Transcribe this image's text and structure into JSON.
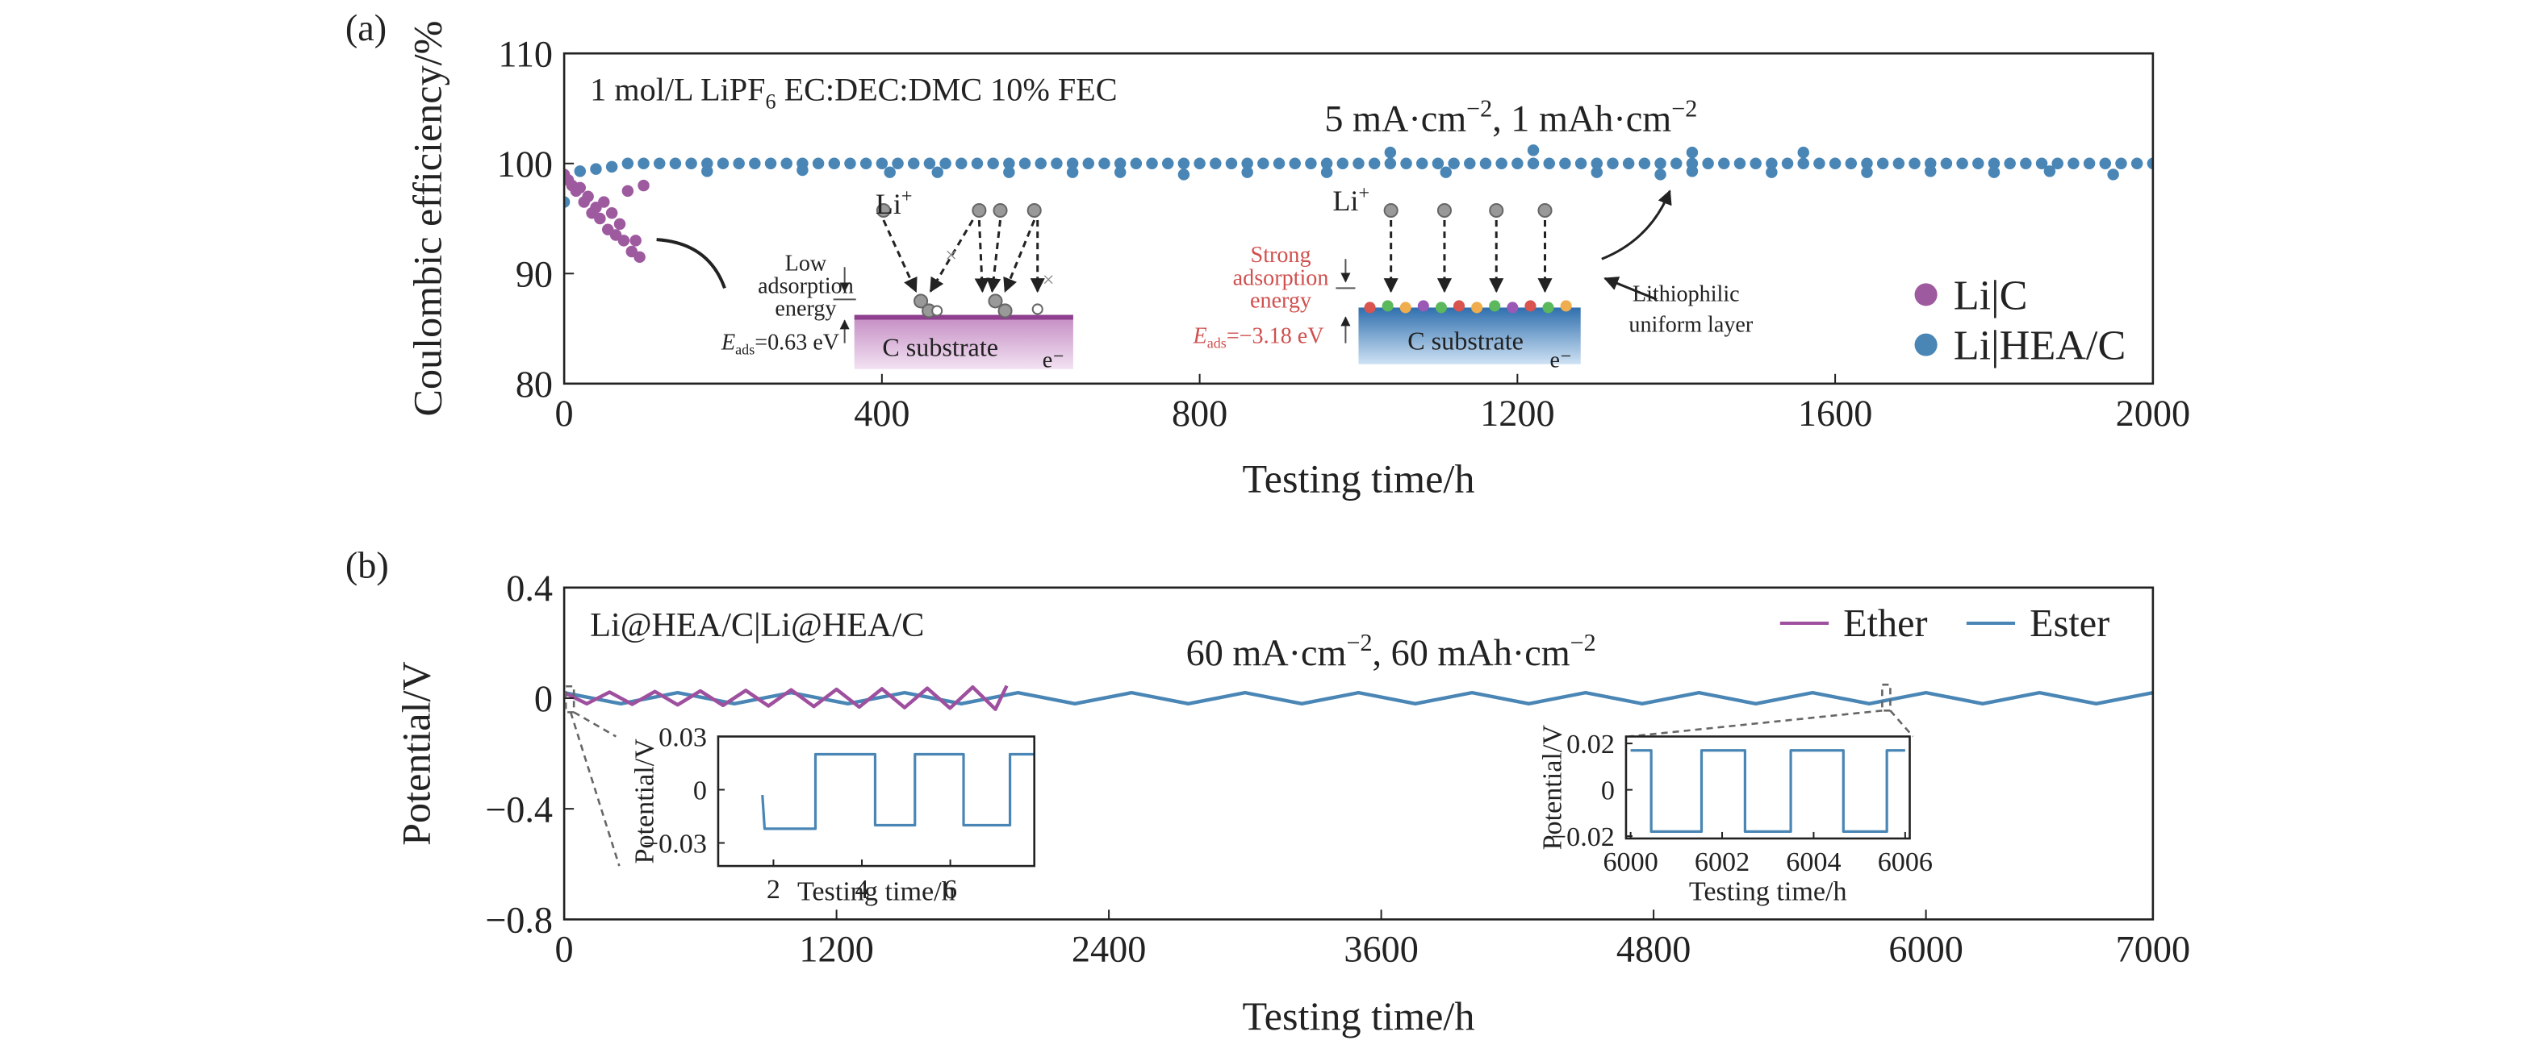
{
  "chart_data": [
    {
      "type": "scatter",
      "panel_label": "(a)",
      "xlabel": "Testing time/h",
      "ylabel": "Coulombic efficiency/%",
      "xlim": [
        0,
        2000
      ],
      "ylim": [
        80,
        110
      ],
      "xticks": [
        0,
        400,
        800,
        1200,
        1600,
        2000
      ],
      "yticks": [
        80,
        90,
        100,
        110
      ],
      "legend": "lower right",
      "series": [
        {
          "name": "Li|C",
          "color": "#9e5a9e",
          "x": [
            0,
            5,
            10,
            15,
            20,
            25,
            30,
            35,
            40,
            45,
            50,
            55,
            60,
            65,
            70,
            75,
            80,
            85,
            90,
            95,
            100
          ],
          "values": [
            99,
            98.5,
            98,
            97.5,
            97.8,
            96.5,
            97,
            95.5,
            96,
            95,
            96.5,
            94,
            95.5,
            93.5,
            94.5,
            93,
            97.5,
            92,
            93,
            91.5,
            98
          ]
        },
        {
          "name": "Li|HEA/C",
          "color": "#4a86b5",
          "x": [
            0,
            20,
            40,
            60,
            80,
            100,
            120,
            140,
            160,
            180,
            200,
            220,
            240,
            260,
            280,
            300,
            320,
            340,
            360,
            380,
            400,
            420,
            440,
            460,
            480,
            500,
            520,
            540,
            560,
            580,
            600,
            620,
            640,
            660,
            680,
            700,
            720,
            740,
            760,
            780,
            800,
            820,
            840,
            860,
            880,
            900,
            920,
            940,
            960,
            980,
            1000,
            1020,
            1040,
            1060,
            1080,
            1100,
            1120,
            1140,
            1160,
            1180,
            1200,
            1220,
            1240,
            1260,
            1280,
            1300,
            1320,
            1340,
            1360,
            1380,
            1400,
            1420,
            1440,
            1460,
            1480,
            1500,
            1520,
            1540,
            1560,
            1580,
            1600,
            1620,
            1640,
            1660,
            1680,
            1700,
            1720,
            1740,
            1760,
            1780,
            1800,
            1820,
            1840,
            1860,
            1880,
            1900,
            1920,
            1940,
            1960,
            1980,
            2000,
            180,
            300,
            410,
            470,
            560,
            640,
            700,
            780,
            860,
            960,
            1040,
            1110,
            1220,
            1300,
            1380,
            1420,
            1420,
            1520,
            1560,
            1640,
            1720,
            1800,
            1870,
            1950
          ],
          "values": [
            96.5,
            99.3,
            99.5,
            99.7,
            100,
            100,
            100,
            100,
            100,
            100,
            100,
            100,
            100,
            100,
            100,
            100,
            100,
            100,
            100,
            100,
            100,
            100,
            100,
            100,
            100,
            100,
            100,
            100,
            100,
            100,
            100,
            100,
            100,
            100,
            100,
            100,
            100,
            100,
            100,
            100,
            100,
            100,
            100,
            100,
            100,
            100,
            100,
            100,
            100,
            100,
            100,
            100,
            100,
            100,
            100,
            100,
            100,
            100,
            100,
            100,
            100,
            100,
            100,
            100,
            100,
            100,
            100,
            100,
            100,
            100,
            100,
            100,
            100,
            100,
            100,
            100,
            100,
            100,
            100,
            100,
            100,
            100,
            100,
            100,
            100,
            100,
            100,
            100,
            100,
            100,
            100,
            100,
            100,
            100,
            100,
            100,
            100,
            100,
            100,
            100,
            100,
            99.3,
            99.4,
            99.2,
            99.2,
            99.2,
            99.2,
            99.2,
            99,
            99.2,
            99.2,
            101,
            99.2,
            101.2,
            99.2,
            99,
            101,
            99.3,
            99.2,
            101,
            99.2,
            99.3,
            99.2,
            99.3,
            99
          ]
        }
      ],
      "annotations": {
        "electrolyte": [
          "1 mol/L LiPF",
          "6",
          " EC:DEC:DMC 10% FEC"
        ],
        "condition": [
          "5 mA·cm",
          "−2",
          ", 1 mAh·cm",
          "−2"
        ],
        "li_ion_1": [
          "Li",
          "+"
        ],
        "li_ion_2": [
          "Li",
          "+"
        ],
        "low_energy": [
          "Low",
          "adsorption",
          "energy"
        ],
        "eads_1": [
          "E",
          "ads",
          "=0.63 eV"
        ],
        "substrate_1": "C substrate",
        "electron_1": "e⁻",
        "strong_energy": [
          "Strong",
          "adsorption",
          "energy"
        ],
        "eads_2": [
          "E",
          "ads",
          "=−3.18 eV"
        ],
        "substrate_2": "C substrate",
        "electron_2": "e⁻",
        "layer": [
          "Lithiophilic",
          "uniform layer"
        ]
      }
    },
    {
      "type": "line",
      "panel_label": "(b)",
      "xlabel": "Testing time/h",
      "ylabel": "Potential/V",
      "xlim": [
        0,
        7000
      ],
      "ylim": [
        -0.8,
        0.4
      ],
      "xticks": [
        0,
        1200,
        2400,
        3600,
        4800,
        6000,
        7000
      ],
      "yticks": [
        {
          "value": -0.8,
          "label": "−0.8"
        },
        {
          "value": -0.4,
          "label": "−0.4"
        },
        0,
        0.4
      ],
      "legend": "upper right",
      "series": [
        {
          "name": "Ether",
          "color": "#9e4f9e",
          "x": [
            0,
            100,
            200,
            300,
            400,
            500,
            600,
            700,
            800,
            900,
            1000,
            1100,
            1200,
            1300,
            1400,
            1500,
            1600,
            1700,
            1800,
            1900,
            1950
          ],
          "values": [
            0.02,
            -0.02,
            0.022,
            -0.022,
            0.024,
            -0.024,
            0.026,
            -0.026,
            0.028,
            -0.028,
            0.03,
            -0.03,
            0.032,
            -0.032,
            0.034,
            -0.034,
            0.036,
            -0.036,
            0.04,
            -0.04,
            0.045
          ]
        },
        {
          "name": "Ester",
          "color": "#4a86b5",
          "x": [
            0,
            250,
            500,
            750,
            1000,
            1250,
            1500,
            1750,
            2000,
            2250,
            2500,
            2750,
            3000,
            3250,
            3500,
            3750,
            4000,
            4250,
            4500,
            4750,
            5000,
            5250,
            5500,
            5750,
            6000,
            6250,
            6500,
            6750,
            7000
          ],
          "values": [
            0.02,
            -0.02,
            0.02,
            -0.02,
            0.02,
            -0.02,
            0.02,
            -0.02,
            0.02,
            -0.02,
            0.02,
            -0.02,
            0.02,
            -0.02,
            0.02,
            -0.02,
            0.02,
            -0.02,
            0.02,
            -0.02,
            0.02,
            -0.02,
            0.02,
            -0.02,
            0.02,
            -0.02,
            0.02,
            -0.02,
            0.02
          ]
        }
      ],
      "annotations": {
        "cell": "Li@HEA/C|Li@HEA/C",
        "condition": [
          "60 mA·cm",
          "−2",
          ", 60 mAh·cm",
          "−2"
        ]
      }
    },
    {
      "type": "line",
      "xlabel": "Testing time/h",
      "ylabel": "Potential/V",
      "xlim": [
        0.75,
        7.9
      ],
      "ylim": [
        -0.043,
        0.03
      ],
      "xticks": [
        2,
        4,
        6
      ],
      "yticks": [
        {
          "value": -0.03,
          "label": "−0.03"
        },
        0,
        0.03
      ],
      "series": [
        {
          "name": "Ester",
          "color": "#4a86b5",
          "x": [
            1.75,
            1.8,
            2.95,
            2.95,
            4.3,
            4.3,
            5.2,
            5.2,
            6.3,
            6.3,
            7.35,
            7.35,
            7.9
          ],
          "values": [
            -0.003,
            -0.022,
            -0.022,
            0.02,
            0.02,
            -0.02,
            -0.02,
            0.02,
            0.02,
            -0.02,
            -0.02,
            0.02,
            0.02
          ]
        }
      ]
    },
    {
      "type": "line",
      "xlabel": "Testing time/h",
      "ylabel": "Potential/V",
      "xlim": [
        5999.9,
        6006.1
      ],
      "ylim": [
        -0.021,
        0.023
      ],
      "xticks": [
        6000,
        6002,
        6004,
        6006
      ],
      "yticks": [
        {
          "value": -0.02,
          "label": "−0.02"
        },
        0,
        0.02
      ],
      "series": [
        {
          "name": "Ester",
          "color": "#4a86b5",
          "x": [
            6000,
            6000.45,
            6000.45,
            6001.55,
            6001.55,
            6002.5,
            6002.5,
            6003.5,
            6003.5,
            6004.65,
            6004.65,
            6005.6,
            6005.6,
            6006
          ],
          "values": [
            0.017,
            0.017,
            -0.018,
            -0.018,
            0.017,
            0.017,
            -0.018,
            -0.018,
            0.017,
            0.017,
            -0.018,
            -0.018,
            0.017,
            0.017
          ]
        }
      ]
    }
  ]
}
